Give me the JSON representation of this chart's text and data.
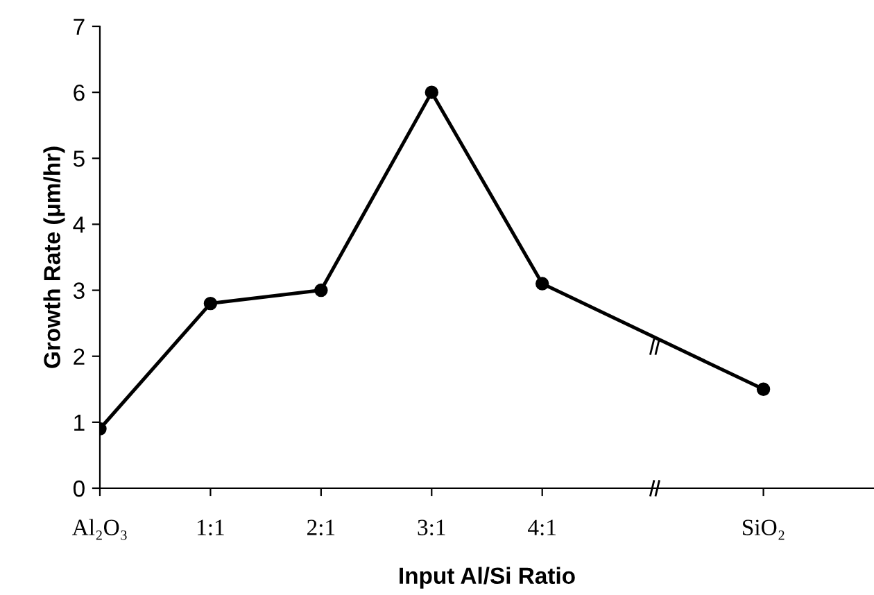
{
  "chart_data": {
    "type": "line",
    "xlabel": "Input Al/Si Ratio",
    "ylabel": "Growth Rate (μm/hr)",
    "categories": [
      "Al₂O₃",
      "1:1",
      "2:1",
      "3:1",
      "4:1",
      null,
      "SiO₂"
    ],
    "series": [
      {
        "color": "#000000",
        "values": [
          0.9,
          2.8,
          3.0,
          6.0,
          3.1,
          null,
          1.5
        ]
      }
    ],
    "ylim": [
      0,
      7
    ],
    "yticks": [
      0,
      1,
      2,
      3,
      4,
      5,
      6,
      7
    ],
    "grid": false,
    "legend": false,
    "marker": "circle",
    "line_style": "solid"
  }
}
